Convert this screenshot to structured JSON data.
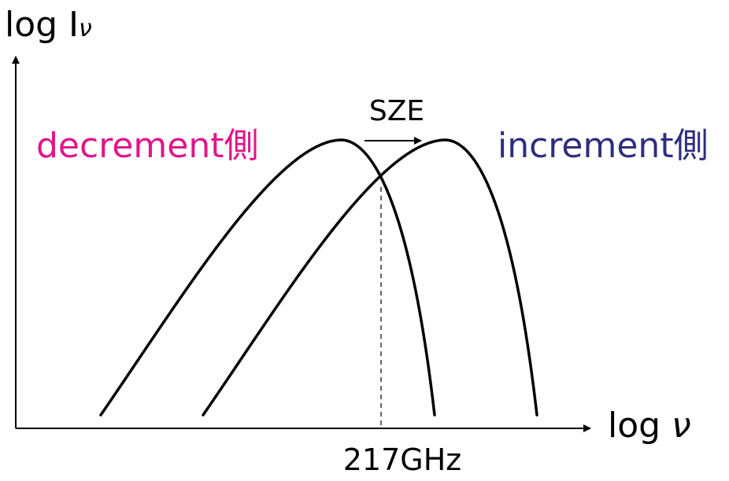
{
  "axes": {
    "y_label": "log I",
    "y_label_sub": "ν",
    "x_label_prefix": "log ",
    "x_label_var": "ν"
  },
  "shift": {
    "label": "SZE"
  },
  "regions": {
    "decrement": {
      "label": "decrement側",
      "color": "#e0158a"
    },
    "increment": {
      "label": "increment側",
      "color": "#2e2e7e"
    }
  },
  "crossing": {
    "label": "217GHz"
  },
  "colors": {
    "line": "#000000",
    "background": "#ffffff"
  }
}
